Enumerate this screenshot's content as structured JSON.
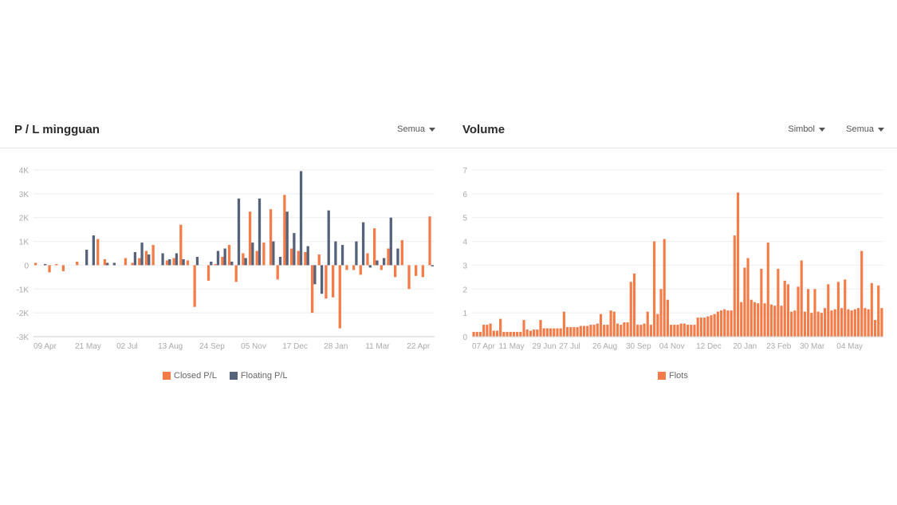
{
  "left": {
    "title": "P / L mingguan",
    "filter": "Semua"
  },
  "right": {
    "title": "Volume",
    "filter_symbol": "Simbol",
    "filter_all": "Semua"
  },
  "colors": {
    "closed": "#f47c48",
    "floating": "#56627a",
    "grid": "#eeeeee",
    "axis": "#cccccc",
    "tick": "#aaaaaa"
  },
  "chart_data": [
    {
      "type": "bar",
      "ylim": [
        -3000,
        4000
      ],
      "yticks": [
        4000,
        3000,
        2000,
        1000,
        0,
        -1000,
        -2000,
        -3000
      ],
      "ytick_labels": [
        "4K",
        "3K",
        "2K",
        "1K",
        "0",
        "-1K",
        "-2K",
        "-3K"
      ],
      "xtick_labels": [
        "09 Apr",
        "21 May",
        "02 Jul",
        "13 Aug",
        "24 Sep",
        "05 Nov",
        "17 Dec",
        "28 Jan",
        "11 Mar",
        "22 Apr"
      ],
      "xtick_index": [
        0,
        6,
        12,
        18,
        24,
        30,
        36,
        42,
        48,
        54
      ],
      "series": [
        {
          "name": "Closed P/L",
          "values": [
            100,
            0,
            -300,
            50,
            -250,
            0,
            150,
            0,
            0,
            1100,
            250,
            0,
            0,
            300,
            100,
            300,
            600,
            850,
            0,
            200,
            300,
            1700,
            200,
            -1750,
            0,
            -650,
            50,
            350,
            850,
            -700,
            500,
            2250,
            600,
            950,
            2350,
            -600,
            2950,
            700,
            600,
            550,
            -2000,
            450,
            -1400,
            -1350,
            -2650,
            -200,
            -200,
            -400,
            500,
            1550,
            -200,
            700,
            -500,
            1050,
            -1000,
            -450,
            -500,
            2050
          ]
        },
        {
          "name": "Floating P/L",
          "values": [
            0,
            50,
            0,
            0,
            0,
            0,
            0,
            650,
            1250,
            0,
            100,
            100,
            0,
            0,
            550,
            950,
            450,
            0,
            500,
            250,
            500,
            250,
            0,
            350,
            0,
            150,
            600,
            700,
            150,
            2800,
            300,
            950,
            2800,
            0,
            1000,
            350,
            2250,
            1350,
            3950,
            800,
            -800,
            -1200,
            2300,
            1000,
            850,
            0,
            1000,
            1800,
            -100,
            200,
            300,
            2000,
            700,
            0,
            0,
            0,
            0,
            -50
          ]
        }
      ]
    },
    {
      "type": "bar",
      "ylim": [
        0,
        7
      ],
      "yticks": [
        7,
        6,
        5,
        4,
        3,
        2,
        1,
        0
      ],
      "ytick_labels": [
        "7",
        "6",
        "5",
        "4",
        "3",
        "2",
        "1",
        "0"
      ],
      "xtick_labels": [
        "07 Apr",
        "11 May",
        "29 Jun",
        "27 Jul",
        "26 Aug",
        "30 Sep",
        "04 Nov",
        "12 Dec",
        "20 Jan",
        "23 Feb",
        "30 Mar",
        "04 May"
      ],
      "xtick_index": [
        0,
        8,
        18,
        26,
        36,
        46,
        56,
        67,
        78,
        88,
        98,
        109
      ],
      "series": [
        {
          "name": "Flots",
          "values": [
            0.2,
            0.2,
            0.2,
            0.5,
            0.5,
            0.55,
            0.25,
            0.25,
            0.75,
            0.2,
            0.2,
            0.2,
            0.2,
            0.2,
            0.2,
            0.7,
            0.3,
            0.25,
            0.3,
            0.3,
            0.7,
            0.35,
            0.35,
            0.35,
            0.35,
            0.35,
            0.35,
            1.05,
            0.4,
            0.4,
            0.4,
            0.4,
            0.45,
            0.45,
            0.45,
            0.5,
            0.5,
            0.55,
            0.95,
            0.5,
            0.5,
            1.1,
            1.05,
            0.55,
            0.5,
            0.6,
            0.6,
            2.3,
            2.65,
            0.5,
            0.5,
            0.55,
            1.05,
            0.5,
            4.0,
            0.95,
            2.0,
            4.1,
            1.55,
            0.5,
            0.5,
            0.5,
            0.55,
            0.55,
            0.5,
            0.5,
            0.5,
            0.8,
            0.8,
            0.8,
            0.85,
            0.9,
            0.95,
            1.05,
            1.1,
            1.15,
            1.1,
            1.1,
            4.25,
            6.05,
            1.45,
            2.9,
            3.3,
            1.55,
            1.45,
            1.4,
            2.85,
            1.4,
            3.95,
            1.35,
            1.3,
            2.85,
            1.3,
            2.35,
            2.2,
            1.05,
            1.1,
            2.1,
            3.2,
            1.05,
            2.0,
            1.0,
            2.0,
            1.05,
            1.0,
            1.2,
            2.2,
            1.1,
            1.15,
            2.3,
            1.2,
            2.4,
            1.15,
            1.1,
            1.15,
            1.2,
            3.6,
            1.2,
            1.15,
            2.25,
            0.7,
            2.15,
            1.2
          ]
        }
      ]
    }
  ]
}
